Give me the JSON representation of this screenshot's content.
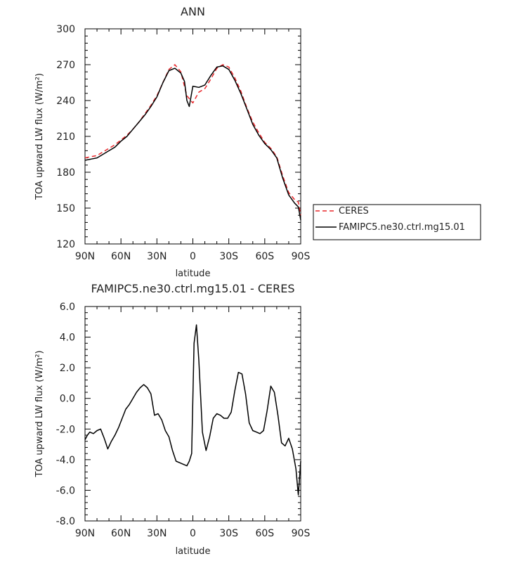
{
  "chart_data": [
    {
      "type": "line",
      "title": "ANN",
      "xlabel": "latitude",
      "ylabel": "TOA upward LW flux (W/m²)",
      "xlim": [
        90,
        -90
      ],
      "ylim": [
        120,
        300
      ],
      "x_ticks": [
        {
          "value": 90,
          "label": "90N"
        },
        {
          "value": 60,
          "label": "60N"
        },
        {
          "value": 30,
          "label": "30N"
        },
        {
          "value": 0,
          "label": "0"
        },
        {
          "value": -30,
          "label": "30S"
        },
        {
          "value": -60,
          "label": "60S"
        },
        {
          "value": -90,
          "label": "90S"
        }
      ],
      "y_ticks": [
        {
          "value": 300,
          "label": "300"
        },
        {
          "value": 270,
          "label": "270"
        },
        {
          "value": 240,
          "label": "240"
        },
        {
          "value": 210,
          "label": "210"
        },
        {
          "value": 180,
          "label": "180"
        },
        {
          "value": 150,
          "label": "150"
        },
        {
          "value": 120,
          "label": "120"
        }
      ],
      "legend_position": "right",
      "series": [
        {
          "name": "CERES",
          "color": "#e8262a",
          "dash": "dashed",
          "x": [
            90,
            85,
            80,
            75,
            70,
            65,
            60,
            55,
            50,
            45,
            40,
            35,
            30,
            25,
            20,
            15,
            10,
            5,
            0,
            -5,
            -10,
            -15,
            -20,
            -25,
            -30,
            -35,
            -40,
            -45,
            -50,
            -55,
            -60,
            -65,
            -70,
            -75,
            -80,
            -85,
            -88,
            -90
          ],
          "y": [
            192,
            193,
            194,
            197,
            200,
            203,
            207,
            211,
            216,
            222,
            229,
            236,
            244,
            255,
            266,
            270,
            264,
            244,
            238,
            247,
            250,
            258,
            267,
            270,
            268,
            259,
            248,
            234,
            222,
            213,
            205,
            200,
            193,
            177,
            163,
            157,
            155,
            144
          ]
        },
        {
          "name": "FAMIPC5.ne30.ctrl.mg15.01",
          "color": "#000000",
          "dash": "solid",
          "x": [
            90,
            85,
            80,
            75,
            70,
            65,
            60,
            55,
            50,
            45,
            40,
            35,
            30,
            25,
            20,
            15,
            10,
            7,
            5,
            3,
            0,
            -5,
            -10,
            -15,
            -20,
            -25,
            -30,
            -35,
            -40,
            -45,
            -50,
            -55,
            -60,
            -65,
            -70,
            -75,
            -80,
            -85,
            -88,
            -90
          ],
          "y": [
            190,
            191,
            192,
            195,
            198,
            201,
            206,
            210,
            216,
            222,
            228,
            235,
            243,
            255,
            265,
            267,
            263,
            256,
            240,
            235,
            252,
            251,
            253,
            261,
            268,
            269,
            266,
            257,
            246,
            233,
            220,
            211,
            204,
            199,
            192,
            175,
            161,
            154,
            151,
            140
          ]
        }
      ]
    },
    {
      "type": "line",
      "title": "FAMIPC5.ne30.ctrl.mg15.01 - CERES",
      "xlabel": "latitude",
      "ylabel": "TOA upward LW flux (W/m²)",
      "xlim": [
        90,
        -90
      ],
      "ylim": [
        -8,
        6
      ],
      "x_ticks": [
        {
          "value": 90,
          "label": "90N"
        },
        {
          "value": 60,
          "label": "60N"
        },
        {
          "value": 30,
          "label": "30N"
        },
        {
          "value": 0,
          "label": "0"
        },
        {
          "value": -30,
          "label": "30S"
        },
        {
          "value": -60,
          "label": "60S"
        },
        {
          "value": -90,
          "label": "90S"
        }
      ],
      "y_ticks": [
        {
          "value": 6,
          "label": "6.0"
        },
        {
          "value": 4,
          "label": "4.0"
        },
        {
          "value": 2,
          "label": "2.0"
        },
        {
          "value": 0,
          "label": "0.0"
        },
        {
          "value": -2,
          "label": "-2.0"
        },
        {
          "value": -4,
          "label": "-4.0"
        },
        {
          "value": -6,
          "label": "-6.0"
        },
        {
          "value": -8,
          "label": "-8.0"
        }
      ],
      "series": [
        {
          "color": "#000000",
          "dash": "solid",
          "x": [
            90,
            88,
            86,
            83,
            80,
            77,
            74,
            71,
            68,
            65,
            62,
            59,
            56,
            53,
            50,
            47,
            44,
            41,
            38,
            35,
            32,
            29,
            26,
            23,
            20,
            17,
            14,
            11,
            8,
            5,
            3,
            1,
            -1,
            -3,
            -5,
            -8,
            -11,
            -14,
            -17,
            -20,
            -23,
            -26,
            -29,
            -32,
            -35,
            -38,
            -41,
            -44,
            -47,
            -50,
            -53,
            -56,
            -59,
            -62,
            -65,
            -68,
            -71,
            -74,
            -77,
            -80,
            -83,
            -86,
            -88,
            -90
          ],
          "y": [
            -2.7,
            -2.4,
            -2.2,
            -2.3,
            -2.1,
            -2.0,
            -2.6,
            -3.3,
            -2.8,
            -2.4,
            -1.9,
            -1.3,
            -0.7,
            -0.4,
            0.0,
            0.4,
            0.7,
            0.9,
            0.7,
            0.3,
            -1.1,
            -1.0,
            -1.4,
            -2.1,
            -2.5,
            -3.4,
            -4.1,
            -4.2,
            -4.3,
            -4.4,
            -4.1,
            -3.6,
            3.6,
            4.8,
            2.5,
            -2.2,
            -3.4,
            -2.5,
            -1.3,
            -1.0,
            -1.1,
            -1.3,
            -1.3,
            -0.9,
            0.5,
            1.7,
            1.6,
            0.3,
            -1.6,
            -2.1,
            -2.2,
            -2.3,
            -2.1,
            -0.8,
            0.8,
            0.4,
            -1.1,
            -2.9,
            -3.1,
            -2.6,
            -3.3,
            -4.6,
            -6.3,
            -4.1
          ]
        }
      ]
    }
  ],
  "legend": {
    "items": [
      "CERES",
      "FAMIPC5.ne30.ctrl.mg15.01"
    ]
  }
}
